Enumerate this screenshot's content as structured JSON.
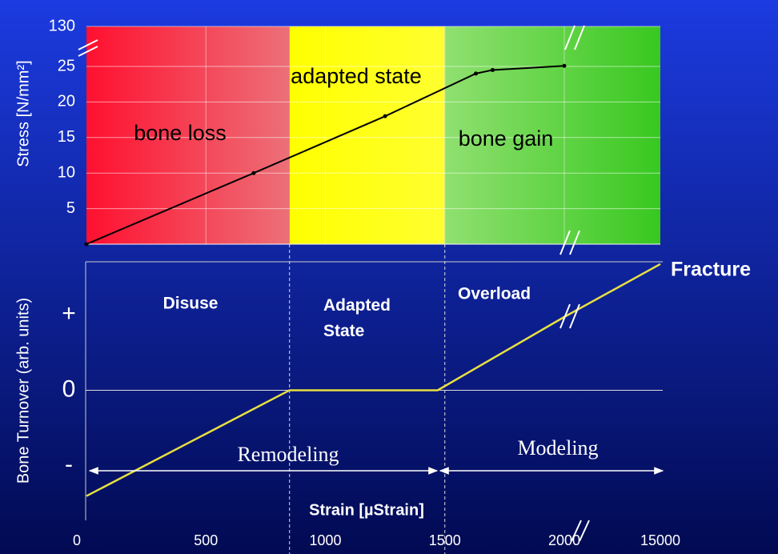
{
  "chart_data": [
    {
      "type": "line",
      "y_label": "Stress [N/mm²]",
      "xlim": [
        0,
        15000
      ],
      "ylim": [
        0,
        130
      ],
      "yticks": [
        5,
        10,
        15,
        20,
        25,
        130
      ],
      "y_break": true,
      "x_break": true,
      "grid": true,
      "regions": [
        {
          "name": "bone loss",
          "from": 0,
          "to": 850,
          "colors": [
            "#ff1030",
            "#ec7078"
          ]
        },
        {
          "name": "adapted state",
          "from": 850,
          "to": 1500,
          "colors": [
            "#ffff00",
            "#ffff30"
          ]
        },
        {
          "name": "bone gain",
          "from": 1500,
          "to": 15000,
          "colors": [
            "#90e070",
            "#38c820"
          ]
        }
      ],
      "series": [
        {
          "color": "#000000",
          "x": [
            0,
            700,
            1250,
            1630,
            1700,
            2000
          ],
          "values": [
            0,
            10,
            18,
            24,
            24.5,
            26.5
          ]
        }
      ]
    },
    {
      "type": "line",
      "y_label": "Bone Turnover (arb. units)",
      "x_label": "Strain [µStrain]",
      "xlim": [
        0,
        15000
      ],
      "xticks": [
        0,
        500,
        1000,
        1500,
        2000,
        15000
      ],
      "x_break": true,
      "ylim": [
        -1.5,
        1.7
      ],
      "yticks": [
        {
          "value": 1,
          "label": "+"
        },
        0,
        {
          "value": -1,
          "label": "-"
        }
      ],
      "series": [
        {
          "color": "#e8e040",
          "x": [
            0,
            850,
            1470,
            2000,
            15000
          ],
          "values": [
            -1.4,
            0,
            0,
            0.97,
            1.67
          ]
        }
      ],
      "annotations": [
        "Disuse",
        "Adapted State",
        "Overload",
        "Fracture",
        "Remodeling",
        "Modeling"
      ]
    }
  ]
}
